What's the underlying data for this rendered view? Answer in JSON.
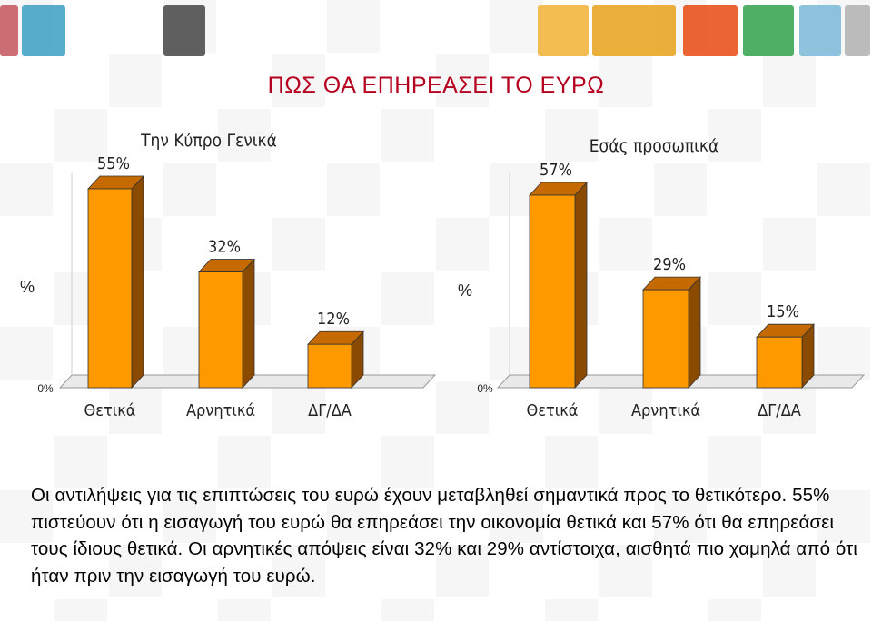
{
  "slide": {
    "title": "ΠΩΣ ΘΑ ΕΠΗΡΕΑΣΕΙ ΤΟ ΕΥΡΩ",
    "caption": "Οι αντιλήψεις για τις επιπτώσεις του ευρώ έχουν μεταβληθεί σημαντικά προς το θετικότερο. 55% πιστεύουν ότι η εισαγωγή του ευρώ θα επηρεάσει την οικονομία θετικά και 57% ότι θα επηρεάσει τους ίδιους θετικά. Οι αρνητικές απόψεις είναι 32% και 29% αντίστοιχα, αισθητά πιο χαμηλά από ότι ήταν πριν την εισαγωγή του ευρώ.",
    "title_color": "#b5001f"
  },
  "colors": {
    "bar_front": "#ff9900",
    "bar_side": "#8a4a00",
    "bar_top": "#c46a00",
    "floor": "#999999",
    "deco": [
      "#c4545c",
      "#3b9fc4",
      "#444444",
      "#f2b134",
      "#e8a21a",
      "#e84a10",
      "#2fa14a",
      "#7ab8d8",
      "#b0b0b0"
    ]
  },
  "chart_data": [
    {
      "type": "bar",
      "title": "Την Κύπρο Γενικά",
      "ylabel": "%",
      "ytick": "0%",
      "categories": [
        "Θετικά",
        "Αρνητικά",
        "ΔΓ/ΔΑ"
      ],
      "values": [
        55,
        32,
        12
      ],
      "value_labels": [
        "55%",
        "32%",
        "12%"
      ],
      "ylim": [
        0,
        60
      ],
      "grid": false
    },
    {
      "type": "bar",
      "title": "Εσάς προσωπικά",
      "ylabel": "%",
      "ytick": "0%",
      "categories": [
        "Θετικά",
        "Αρνητικά",
        "ΔΓ/ΔΑ"
      ],
      "values": [
        57,
        29,
        15
      ],
      "value_labels": [
        "57%",
        "29%",
        "15%"
      ],
      "ylim": [
        0,
        60
      ],
      "grid": false
    }
  ]
}
